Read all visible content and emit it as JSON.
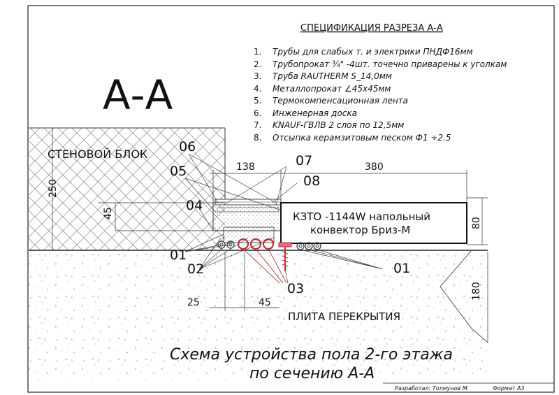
{
  "section_mark": "А-А",
  "spec": {
    "title": "СПЕЦИФИКАЦИЯ РАЗРЕЗА А-А",
    "items": [
      {
        "num": "1.",
        "text": "Трубы для слабых т. и электрики ПНДФ16мм"
      },
      {
        "num": "2.",
        "text": "Трубопрокат ¾\" -4шт. точечно приварены к уголкам"
      },
      {
        "num": "3.",
        "text": "Труба RAUTHERM S_14,0мм"
      },
      {
        "num": "4.",
        "text": "Металлопрокат ∠45х45мм"
      },
      {
        "num": "5.",
        "text": "Термокомпенсационная лента"
      },
      {
        "num": "6.",
        "text": "Инженерная доска"
      },
      {
        "num": "7.",
        "text": "KNAUF-ГВЛВ 2 слоя по 12,5мм"
      },
      {
        "num": "8.",
        "text": "Отсыпка керамзитовым песком Ф1 ÷2.5"
      }
    ]
  },
  "labels": {
    "wall_block": "СТЕНОВОЙ БЛОК",
    "slab": "ПЛИТА ПЕРЕКРЫТИЯ",
    "convector_line1": "КЗТО -1144W  напольный",
    "convector_line2": "конвектор Бриз-М"
  },
  "callouts": {
    "c06": "06",
    "c05": "05",
    "c07": "07",
    "c08": "08",
    "c04": "04",
    "c01_left": "01",
    "c02": "02",
    "c03": "03",
    "c01_right": "01"
  },
  "dimensions": {
    "d250": "250",
    "d45_left": "45",
    "d138": "138",
    "d380": "380",
    "d80": "80",
    "d25": "25",
    "d45_bottom": "45",
    "d180": "180"
  },
  "caption": {
    "line1": "Схема устройства пола 2-го этажа",
    "line2": "по сечению А-А"
  },
  "title_block": {
    "developer": "Разработал: Толмунов М.",
    "format": "Формат А3"
  }
}
